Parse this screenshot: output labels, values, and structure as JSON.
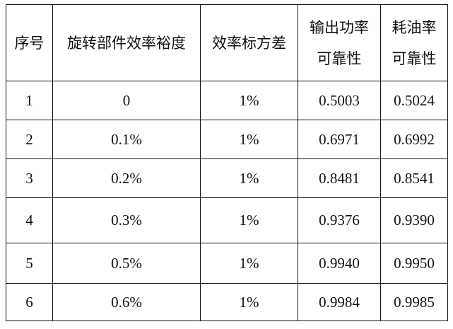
{
  "headers": [
    "序号",
    "旋转部件效率裕度",
    "效率标方差",
    [
      "输出功率",
      "可靠性"
    ],
    [
      "耗油率",
      "可靠性"
    ]
  ],
  "rows": [
    [
      "1",
      "0",
      "1%",
      "0.5003",
      "0.5024"
    ],
    [
      "2",
      "0.1%",
      "1%",
      "0.6971",
      "0.6992"
    ],
    [
      "3",
      "0.2%",
      "1%",
      "0.8481",
      "0.8541"
    ],
    [
      "4",
      "0.3%",
      "1%",
      "0.9376",
      "0.9390"
    ],
    [
      "5",
      "0.5%",
      "1%",
      "0.9940",
      "0.9950"
    ],
    [
      "6",
      "0.6%",
      "1%",
      "0.9984",
      "0.9985"
    ]
  ]
}
